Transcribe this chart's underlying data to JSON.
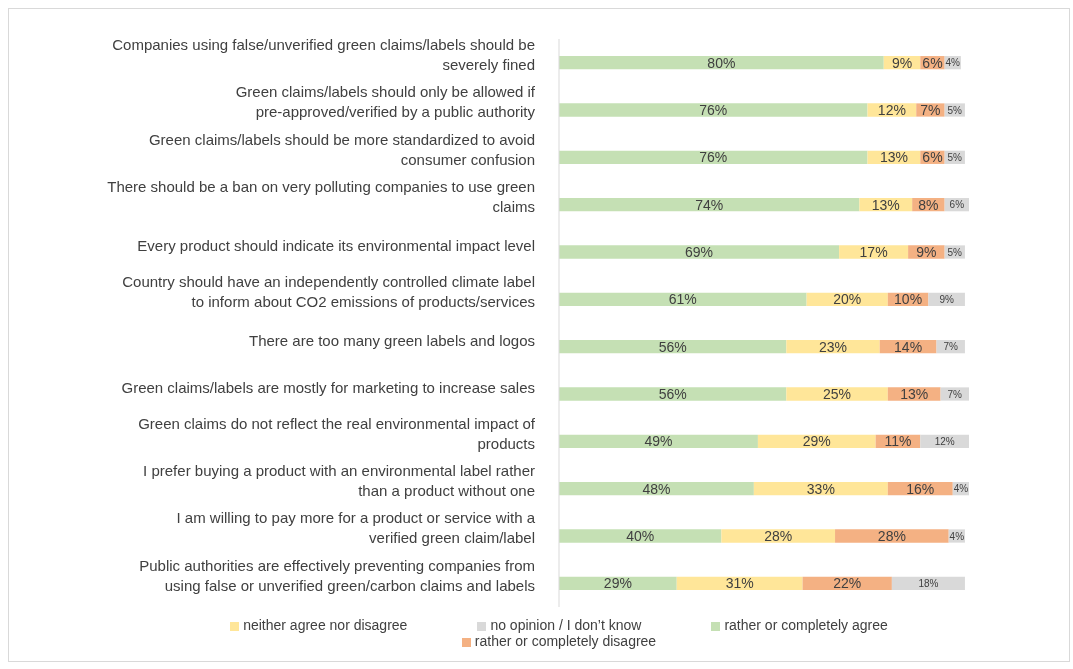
{
  "chart_data": {
    "type": "bar",
    "orientation": "horizontal",
    "stacked": true,
    "legend": "bottom",
    "categories": [
      "Companies using false/unverified green claims/labels should be severely fined",
      "Green claims/labels should only be allowed if pre-approved/verified by a public authority",
      "Green claims/labels should be more standardized to avoid consumer confusion",
      "There should be a ban on very polluting companies to use green claims",
      "Every product should indicate its environmental impact level",
      "Country should have an independently controlled climate label to inform about CO2 emissions of products/services",
      "There are too many green labels and logos",
      "Green claims/labels are mostly for marketing to increase sales",
      "Green claims do not reflect the real environmental impact of products",
      "I prefer buying a product with an environmental label rather than a product without one",
      "I am willing to pay more for a product or service with a verified green claim/label",
      "Public authorities are effectively preventing companies from using false or unverified green/carbon claims and labels"
    ],
    "series": [
      {
        "name": "rather or completely agree",
        "color": "#c5e0b4",
        "values": [
          80,
          76,
          76,
          74,
          69,
          61,
          56,
          56,
          49,
          48,
          40,
          29
        ],
        "value_labels": [
          "80%",
          "76%",
          "76%",
          "74%",
          "69%",
          "61%",
          "56%",
          "56%",
          "49%",
          "48%",
          "40%",
          "29%"
        ]
      },
      {
        "name": "neither agree nor disagree",
        "color": "#ffe699",
        "values": [
          9,
          12,
          13,
          13,
          17,
          20,
          23,
          25,
          29,
          33,
          28,
          31
        ],
        "value_labels": [
          "9%",
          "12%",
          "13%",
          "13%",
          "17%",
          "20%",
          "23%",
          "25%",
          "29%",
          "33%",
          "28%",
          "31%"
        ]
      },
      {
        "name": "rather or completely disagree",
        "color": "#f4b183",
        "values": [
          6,
          7,
          6,
          8,
          9,
          10,
          14,
          13,
          11,
          16,
          28,
          22
        ],
        "value_labels": [
          "6%",
          "7%",
          "6%",
          "8%",
          "9%",
          "10%",
          "14%",
          "13%",
          "11%",
          "16%",
          "28%",
          "22%"
        ]
      },
      {
        "name": "no opinion / I don’t know",
        "color": "#d9d9d9",
        "values": [
          4,
          5,
          5,
          6,
          5,
          9,
          7,
          7,
          12,
          4,
          4,
          18
        ],
        "value_labels": [
          "4%",
          "5%",
          "5%",
          "6%",
          "5%",
          "9%",
          "7%",
          "7%",
          "12%",
          "4%",
          "4%",
          "18%"
        ]
      }
    ]
  }
}
